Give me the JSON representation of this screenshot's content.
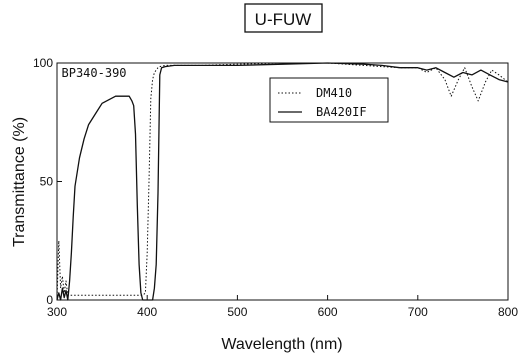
{
  "chart_data": {
    "type": "line",
    "title": "U-FUW",
    "xlabel": "Wavelength (nm)",
    "ylabel": "Transmittance (%)",
    "xlim": [
      300,
      800
    ],
    "ylim": [
      0,
      100
    ],
    "x_ticks": [
      "300",
      "400",
      "500",
      "600",
      "700",
      "800"
    ],
    "y_ticks": [
      "0",
      "50",
      "100"
    ],
    "grid": false,
    "legend_position": "top-center",
    "annotations": [
      {
        "text": "BP340-390",
        "x": 305,
        "y": 94
      }
    ],
    "series": [
      {
        "name": "DM410",
        "style": "dotted",
        "x": [
          300,
          302,
          304,
          306,
          308,
          310,
          312,
          320,
          340,
          360,
          380,
          395,
          398,
          400,
          402,
          404,
          406,
          408,
          410,
          412,
          414,
          420,
          440,
          460,
          500,
          550,
          600,
          640,
          660,
          680,
          700,
          710,
          720,
          730,
          737,
          745,
          752,
          760,
          767,
          775,
          782,
          790,
          800
        ],
        "y": [
          0,
          25,
          5,
          10,
          3,
          8,
          2,
          2,
          2,
          2,
          2,
          2,
          3,
          20,
          50,
          85,
          93,
          96,
          97,
          98,
          98.5,
          99,
          99,
          99,
          99.5,
          100,
          100,
          99,
          98.5,
          98,
          98,
          96,
          98,
          93,
          86,
          93,
          98,
          90,
          84,
          92,
          97,
          95,
          92
        ]
      },
      {
        "name": "BA420IF",
        "style": "solid",
        "x": [
          300,
          302,
          304,
          306,
          308,
          310,
          312,
          314,
          316,
          318,
          320,
          325,
          330,
          335,
          340,
          345,
          350,
          355,
          360,
          365,
          370,
          375,
          380,
          383,
          385,
          387,
          389,
          391,
          393,
          395,
          398,
          400,
          402,
          404,
          406,
          408,
          410,
          412,
          414,
          416,
          420,
          430,
          460,
          500,
          550,
          600,
          640,
          660,
          680,
          700,
          710,
          720,
          730,
          740,
          750,
          760,
          770,
          780,
          790,
          800
        ],
        "y": [
          0,
          3,
          0,
          5,
          1,
          4,
          0,
          8,
          20,
          35,
          48,
          60,
          68,
          74,
          77,
          80,
          83,
          84,
          85,
          86,
          86,
          86,
          86,
          84,
          82,
          70,
          40,
          15,
          3,
          0,
          0,
          0,
          0,
          0,
          0,
          5,
          15,
          45,
          95,
          98,
          98.5,
          99,
          99,
          99,
          99.5,
          100,
          99.5,
          99,
          98,
          98,
          97,
          98,
          96,
          94,
          96,
          95,
          97,
          95,
          93,
          92
        ]
      }
    ]
  }
}
